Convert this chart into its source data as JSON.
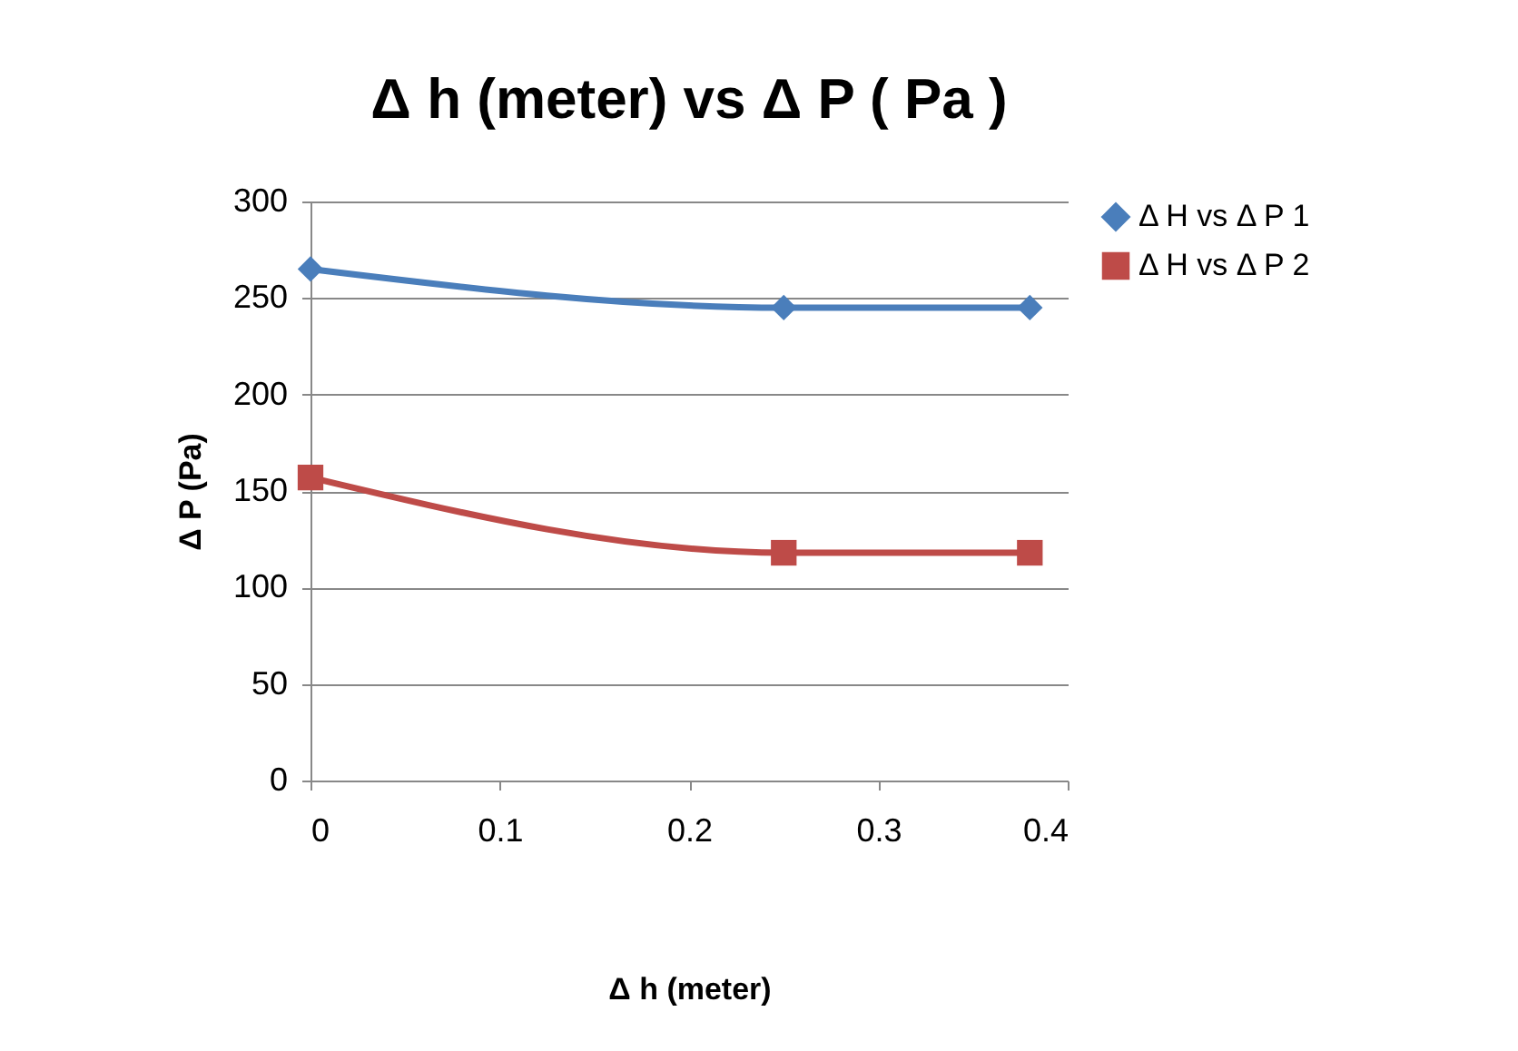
{
  "chart_data": {
    "type": "line",
    "title": "Δ h (meter) vs Δ P ( Pa )",
    "xlabel": "Δ h (meter)",
    "ylabel": "Δ P (Pa)",
    "x": [
      0,
      0.25,
      0.38
    ],
    "series": [
      {
        "name": "Δ H vs Δ P 1",
        "color": "#4a7ebb",
        "values": [
          265,
          245,
          245
        ],
        "marker": "diamond"
      },
      {
        "name": "Δ H vs Δ P 2",
        "color": "#be4b48",
        "values": [
          157,
          118,
          118
        ],
        "marker": "square"
      }
    ],
    "xlim": [
      0,
      0.4
    ],
    "xticks": [
      0,
      0.1,
      0.2,
      0.3,
      0.4
    ],
    "ylim": [
      0,
      300
    ],
    "yticks": [
      0,
      50,
      100,
      150,
      200,
      250,
      300
    ],
    "grid": "y",
    "legend": "right",
    "line_style": "solid"
  }
}
